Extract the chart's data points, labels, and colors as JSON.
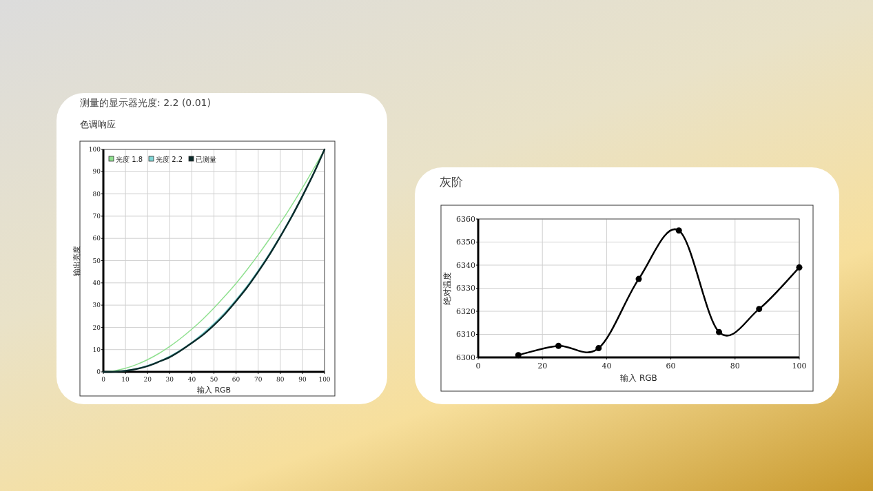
{
  "chart_data": [
    {
      "type": "line",
      "title": "测量的显示器光度: 2.2 (0.01)",
      "subtitle": "色调响应",
      "xlabel": "输入 RGB",
      "ylabel": "输出亮度",
      "x": [
        0,
        5,
        10,
        15,
        20,
        25,
        30,
        35,
        40,
        45,
        50,
        55,
        60,
        65,
        70,
        75,
        80,
        85,
        90,
        95,
        100
      ],
      "series": [
        {
          "name": "光度 1.8",
          "color": "#8fe08f",
          "values": [
            0,
            0.5,
            1.6,
            3.3,
            5.5,
            8.2,
            11.4,
            15.1,
            19.2,
            23.7,
            28.7,
            34.1,
            39.8,
            46,
            52.6,
            59.6,
            66.9,
            74.6,
            82.7,
            91.2,
            100
          ]
        },
        {
          "name": "光度 2.2",
          "color": "#7fd6d6",
          "values": [
            0,
            0.1,
            0.6,
            1.5,
            2.9,
            4.7,
            7.1,
            9.9,
            13.3,
            17.3,
            21.8,
            26.8,
            32.5,
            38.7,
            45.6,
            53.1,
            61.2,
            69.9,
            79.3,
            89.3,
            100
          ]
        },
        {
          "name": "已测量",
          "color": "#0b2b2b",
          "values": [
            0,
            0.1,
            0.5,
            1.3,
            2.6,
            4.5,
            6.6,
            9.6,
            13,
            16.6,
            21,
            26,
            31.8,
            38,
            45,
            52.5,
            60.8,
            69.5,
            79,
            89,
            100
          ]
        }
      ],
      "xlim": [
        0,
        100
      ],
      "ylim": [
        0,
        100
      ],
      "xticks": [
        0,
        10,
        20,
        30,
        40,
        50,
        60,
        70,
        80,
        90,
        100
      ],
      "yticks": [
        0,
        10,
        20,
        30,
        40,
        50,
        60,
        70,
        80,
        90,
        100
      ],
      "grid": true,
      "legend": "top left",
      "marker": "none",
      "line_style": "solid"
    },
    {
      "type": "line",
      "title": "灰阶",
      "xlabel": "输入 RGB",
      "ylabel": "绝对温度",
      "x": [
        12.5,
        25,
        37.5,
        50,
        62.5,
        75,
        87.5,
        100
      ],
      "series": [
        {
          "color": "#000000",
          "values": [
            6301,
            6305,
            6304,
            6334,
            6355,
            6311,
            6321,
            6339
          ]
        }
      ],
      "xlim": [
        0,
        100
      ],
      "ylim": [
        6300,
        6360
      ],
      "xticks": [
        0,
        20,
        40,
        60,
        80,
        100
      ],
      "yticks": [
        6300,
        6310,
        6320,
        6330,
        6340,
        6350,
        6360
      ],
      "grid": true,
      "marker": "circle",
      "line_style": "solid"
    }
  ]
}
